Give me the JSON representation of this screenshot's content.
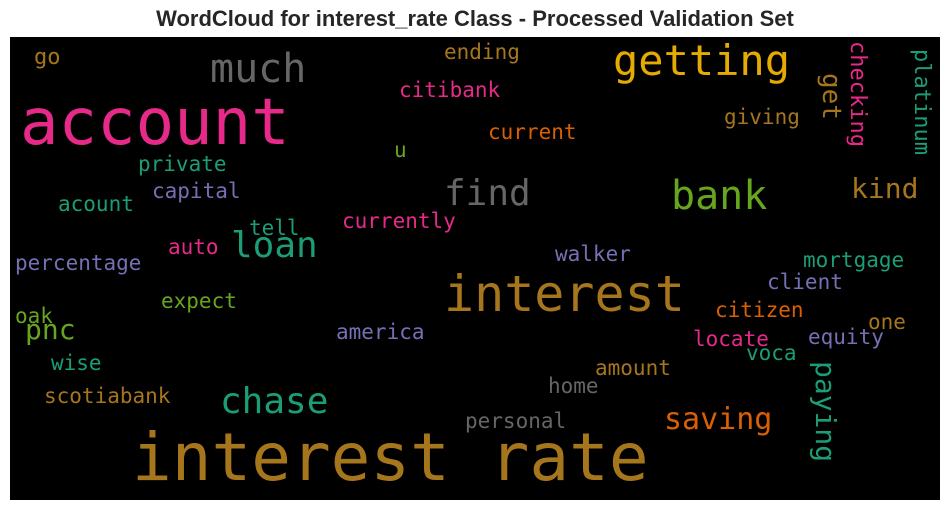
{
  "title": "WordCloud for interest_rate Class - Processed Validation Set",
  "words": {
    "interest_rate": "interest rate",
    "account": "account",
    "interest": "interest",
    "getting": "getting",
    "much": "much",
    "bank": "bank",
    "find": "find",
    "chase": "chase",
    "loan": "loan",
    "saving": "saving",
    "paying": "paying",
    "kind": "kind",
    "get": "get",
    "checking": "checking",
    "platinum": "platinum",
    "pnc": "pnc",
    "go": "go",
    "ending": "ending",
    "citibank": "citibank",
    "giving": "giving",
    "current": "current",
    "u": "u",
    "private": "private",
    "capital": "capital",
    "acount": "acount",
    "tell": "tell",
    "currently": "currently",
    "auto": "auto",
    "percentage": "percentage",
    "walker": "walker",
    "mortgage": "mortgage",
    "client": "client",
    "expect": "expect",
    "citizen": "citizen",
    "oak": "oak",
    "one": "one",
    "america": "america",
    "locate": "locate",
    "equity": "equity",
    "wise": "wise",
    "voca": "voca",
    "amount": "amount",
    "home": "home",
    "scotiabank": "scotiabank",
    "personal": "personal"
  },
  "colors": {
    "gold": "#a6761d",
    "pink": "#e7298a",
    "green": "#66a61e",
    "teal": "#1b9e77",
    "orange": "#d95f02",
    "purple": "#7570b3",
    "gray": "#666666",
    "yellow": "#e6ab02"
  }
}
